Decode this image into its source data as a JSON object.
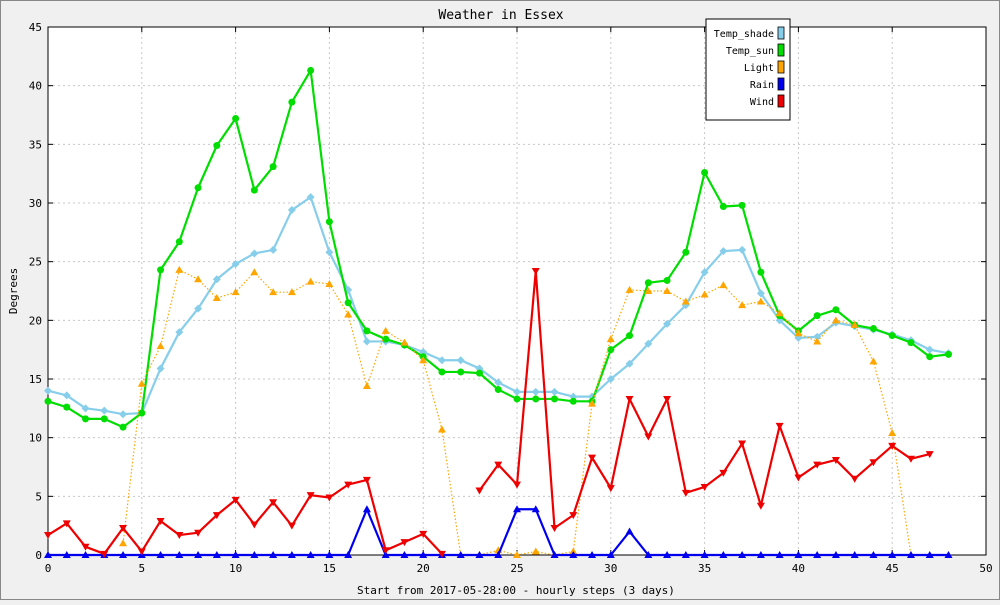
{
  "chart_data": {
    "type": "line",
    "title": "Weather in Essex",
    "xlabel": "Start from 2017-05-28:00 - hourly steps (3 days)",
    "ylabel": "Degrees",
    "xlim": [
      0,
      50
    ],
    "ylim": [
      0,
      45
    ],
    "x_ticks": [
      0,
      5,
      10,
      15,
      20,
      25,
      30,
      35,
      40,
      45,
      50
    ],
    "y_ticks": [
      0,
      5,
      10,
      15,
      20,
      25,
      30,
      35,
      40,
      45
    ],
    "grid": true,
    "legend_position": "top-right",
    "x": [
      0,
      1,
      2,
      3,
      4,
      5,
      6,
      7,
      8,
      9,
      10,
      11,
      12,
      13,
      14,
      15,
      16,
      17,
      18,
      19,
      20,
      21,
      22,
      23,
      24,
      25,
      26,
      27,
      28,
      29,
      30,
      31,
      32,
      33,
      34,
      35,
      36,
      37,
      38,
      39,
      40,
      41,
      42,
      43,
      44,
      45,
      46,
      47,
      48
    ],
    "series": [
      {
        "name": "Temp_shade",
        "color": "#87ceeb",
        "marker": "diamond",
        "style": "solid",
        "values": [
          14.0,
          13.6,
          12.5,
          12.3,
          12.0,
          12.1,
          15.9,
          19.0,
          21.0,
          23.5,
          24.8,
          25.7,
          26.0,
          29.4,
          30.5,
          25.8,
          22.6,
          18.2,
          18.2,
          17.9,
          17.3,
          16.6,
          16.6,
          15.9,
          14.7,
          13.9,
          13.9,
          13.9,
          13.5,
          13.5,
          15.0,
          16.3,
          18.0,
          19.7,
          21.3,
          24.1,
          25.9,
          26.0,
          22.3,
          20.0,
          18.5,
          18.6,
          19.8,
          19.5,
          19.2,
          18.8,
          18.3,
          17.5,
          17.2
        ]
      },
      {
        "name": "Temp_sun",
        "color": "#00dd00",
        "marker": "circle",
        "style": "solid",
        "values": [
          13.1,
          12.6,
          11.6,
          11.6,
          10.9,
          12.1,
          24.3,
          26.7,
          31.3,
          34.9,
          37.2,
          31.1,
          33.1,
          38.6,
          41.3,
          28.4,
          21.5,
          19.1,
          18.4,
          17.9,
          16.9,
          15.6,
          15.6,
          15.5,
          14.1,
          13.3,
          13.3,
          13.3,
          13.1,
          13.1,
          17.5,
          18.7,
          23.2,
          23.4,
          25.8,
          32.6,
          29.7,
          29.8,
          24.1,
          20.4,
          19.1,
          20.4,
          20.9,
          19.6,
          19.3,
          18.7,
          18.1,
          16.9,
          17.1
        ]
      },
      {
        "name": "Light",
        "color": "#ffa500",
        "marker": "triangle-up",
        "style": "dotted",
        "values": [
          null,
          null,
          null,
          null,
          1.0,
          14.6,
          17.8,
          24.3,
          23.5,
          21.9,
          22.4,
          24.1,
          22.4,
          22.4,
          23.3,
          23.1,
          20.5,
          14.4,
          19.1,
          18.1,
          16.6,
          10.7,
          0.0,
          0.0,
          0.4,
          0.0,
          0.3,
          0.0,
          0.3,
          12.9,
          18.4,
          22.6,
          22.5,
          22.5,
          21.6,
          22.2,
          23.0,
          21.3,
          21.6,
          20.6,
          18.9,
          18.2,
          20.0,
          19.6,
          16.5,
          10.4,
          0.0,
          null,
          null
        ]
      },
      {
        "name": "Rain",
        "color": "#0000ee",
        "marker": "triangle-up",
        "style": "solid",
        "values": [
          0,
          0,
          0,
          0,
          0,
          0,
          0,
          0,
          0,
          0,
          0,
          0,
          0,
          0,
          0,
          0,
          0,
          3.9,
          0,
          0,
          0,
          0,
          0,
          0,
          0,
          3.9,
          3.9,
          0,
          0,
          0,
          0,
          2.0,
          0,
          0,
          0,
          0,
          0,
          0,
          0,
          0,
          0,
          0,
          0,
          0,
          0,
          0,
          0,
          0,
          0
        ]
      },
      {
        "name": "Wind",
        "color": "#ee0000",
        "marker": "triangle-down",
        "style": "solid",
        "values": [
          1.7,
          2.7,
          0.7,
          0.1,
          2.3,
          0.3,
          2.9,
          1.7,
          1.9,
          3.4,
          4.7,
          2.6,
          4.5,
          2.5,
          5.1,
          4.9,
          6.0,
          6.4,
          0.4,
          1.1,
          1.8,
          0.1,
          null,
          5.5,
          7.7,
          6.0,
          24.2,
          2.3,
          3.4,
          8.3,
          5.7,
          13.3,
          10.1,
          13.3,
          5.3,
          5.8,
          7.0,
          9.5,
          4.2,
          11.0,
          6.6,
          7.7,
          8.1,
          6.5,
          7.9,
          9.3,
          8.2,
          8.6,
          null
        ]
      }
    ]
  }
}
